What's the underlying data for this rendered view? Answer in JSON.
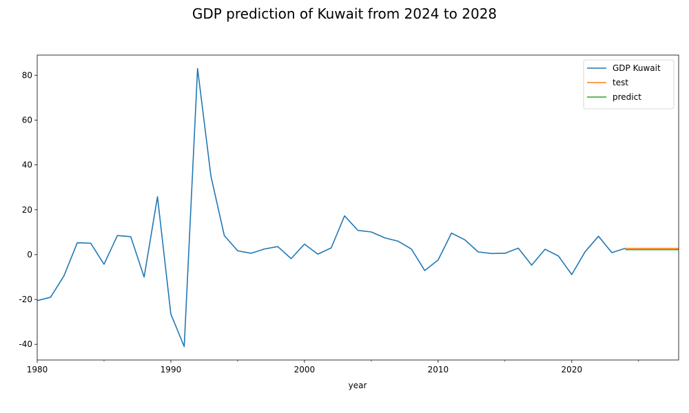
{
  "chart_data": {
    "type": "line",
    "title": "GDP prediction of Kuwait from 2024 to 2028",
    "xlabel": "year",
    "ylabel": "",
    "xlim": [
      1980,
      2028
    ],
    "ylim": [
      -47,
      89
    ],
    "x_ticks": [
      1980,
      1990,
      2000,
      2010,
      2020
    ],
    "x_minor_ticks": [
      1985,
      1995,
      2005,
      2015,
      2025
    ],
    "y_ticks": [
      -40,
      -20,
      0,
      20,
      40,
      60,
      80
    ],
    "grid": false,
    "legend_position": "top-right",
    "series": [
      {
        "name": "GDP Kuwait",
        "color": "#1f77b4",
        "x": [
          1980,
          1981,
          1982,
          1983,
          1984,
          1985,
          1986,
          1987,
          1988,
          1989,
          1990,
          1991,
          1992,
          1993,
          1994,
          1995,
          1996,
          1997,
          1998,
          1999,
          2000,
          2001,
          2002,
          2003,
          2004,
          2005,
          2006,
          2007,
          2008,
          2009,
          2010,
          2011,
          2012,
          2013,
          2014,
          2015,
          2016,
          2017,
          2018,
          2019,
          2020,
          2021,
          2022,
          2023,
          2024
        ],
        "values": [
          -20.5,
          -19,
          -9.5,
          5.3,
          5.1,
          -4.3,
          8.5,
          8,
          -10,
          25.8,
          -26.5,
          -41,
          83,
          35,
          8.5,
          1.7,
          0.6,
          2.5,
          3.6,
          -1.8,
          4.7,
          0.2,
          3,
          17.3,
          10.8,
          10.1,
          7.5,
          6,
          2.5,
          -7.1,
          -2.4,
          9.6,
          6.6,
          1.2,
          0.5,
          0.6,
          2.9,
          -4.7,
          2.4,
          -0.6,
          -8.9,
          1.3,
          8.2,
          0.9,
          2.8
        ]
      },
      {
        "name": "test",
        "color": "#ff7f0e",
        "x": [
          2024,
          2025,
          2026,
          2027,
          2028
        ],
        "values": [
          2.8,
          2.8,
          2.8,
          2.8,
          2.8
        ]
      },
      {
        "name": "predict",
        "color": "#2ca02c",
        "x": [
          2024,
          2025,
          2026,
          2027,
          2028
        ],
        "values": [
          2.2,
          2.2,
          2.2,
          2.2,
          2.2
        ]
      }
    ]
  }
}
